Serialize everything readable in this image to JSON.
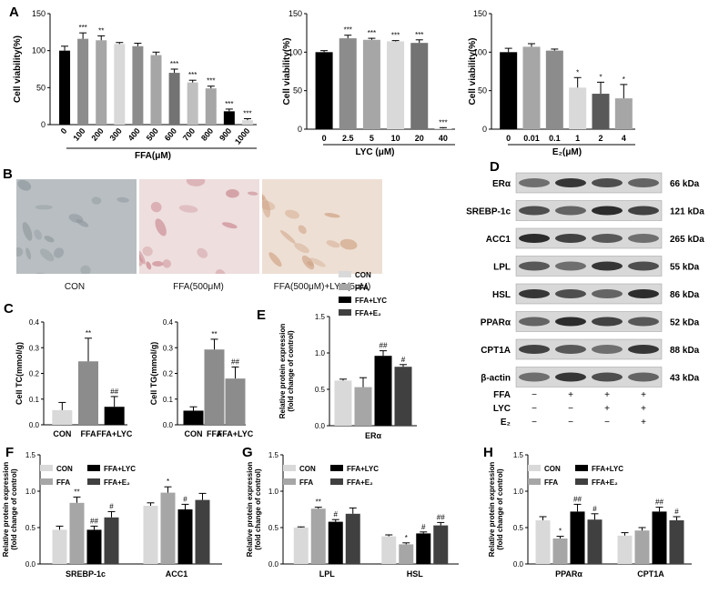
{
  "panel_labels": [
    "A",
    "B",
    "C",
    "D",
    "E",
    "F",
    "G",
    "H"
  ],
  "chart_data": [
    {
      "id": "A1",
      "type": "bar",
      "xlabel": "FFA(μM)",
      "ylabel": "Cell viability(%)",
      "ylim": [
        0,
        150
      ],
      "yticks": [
        0,
        50,
        100,
        150
      ],
      "categories": [
        "0",
        "100",
        "200",
        "300",
        "400",
        "500",
        "600",
        "700",
        "800",
        "900",
        "1000"
      ],
      "values": [
        100,
        116,
        114,
        109,
        106,
        94,
        70,
        57,
        49,
        18,
        6
      ],
      "errors": [
        6,
        8,
        6,
        2,
        4,
        4,
        5,
        3,
        3,
        3,
        2
      ],
      "sig": [
        "",
        "***",
        "**",
        "",
        "",
        "",
        "***",
        "***",
        "***",
        "***",
        "***"
      ],
      "colors": [
        "#000000",
        "#8c8c8c",
        "#a6a6a6",
        "#d9d9d9",
        "#8c8c8c",
        "#a6a6a6",
        "#737373",
        "#bfbfbf",
        "#a6a6a6",
        "#000000",
        "#d9d9d9"
      ],
      "rotate": true
    },
    {
      "id": "A2",
      "type": "bar",
      "xlabel": "LYC (μM)",
      "ylabel": "Cell viability(%)",
      "ylim": [
        0,
        150
      ],
      "yticks": [
        0,
        50,
        100,
        150
      ],
      "categories": [
        "0",
        "2.5",
        "5",
        "10",
        "20",
        "40"
      ],
      "values": [
        100,
        118,
        116,
        114,
        112,
        1
      ],
      "errors": [
        2,
        4,
        2,
        1,
        4,
        1
      ],
      "sig": [
        "",
        "***",
        "***",
        "***",
        "***",
        "***"
      ],
      "colors": [
        "#000000",
        "#8c8c8c",
        "#a6a6a6",
        "#d9d9d9",
        "#737373",
        "#d9d9d9"
      ],
      "rotate": false
    },
    {
      "id": "A3",
      "type": "bar",
      "xlabel": "E₂(μM)",
      "ylabel": "Cell viability(%)",
      "ylim": [
        0,
        150
      ],
      "yticks": [
        0,
        50,
        100,
        150
      ],
      "categories": [
        "0",
        "0.01",
        "0.1",
        "1",
        "2",
        "4"
      ],
      "values": [
        100,
        107,
        102,
        54,
        46,
        40
      ],
      "errors": [
        5,
        4,
        2,
        13,
        15,
        18
      ],
      "sig": [
        "",
        "",
        "",
        "*",
        "*",
        "*"
      ],
      "colors": [
        "#000000",
        "#a6a6a6",
        "#8c8c8c",
        "#d9d9d9",
        "#595959",
        "#a6a6a6"
      ],
      "rotate": false
    },
    {
      "id": "C1",
      "type": "bar",
      "xlabel": "",
      "ylabel": "Cell TC(mmol/g)",
      "ylim": [
        0,
        0.4
      ],
      "yticks": [
        0.0,
        0.1,
        0.2,
        0.3,
        0.4
      ],
      "categories": [
        "CON",
        "FFA",
        "FFA+LYC"
      ],
      "values": [
        0.057,
        0.247,
        0.07
      ],
      "errors": [
        0.03,
        0.09,
        0.04
      ],
      "sig": [
        "",
        "**",
        "##"
      ],
      "colors": [
        "#d9d9d9",
        "#8c8c8c",
        "#000000"
      ],
      "rotate": false
    },
    {
      "id": "C2",
      "type": "bar",
      "xlabel": "",
      "ylabel": "Cell TG(mmol/g)",
      "ylim": [
        0,
        0.4
      ],
      "yticks": [
        0.0,
        0.1,
        0.2,
        0.3,
        0.4
      ],
      "categories": [
        "CON",
        "FFA",
        "FFA+LYC"
      ],
      "values": [
        0.055,
        0.293,
        0.18
      ],
      "errors": [
        0.015,
        0.04,
        0.045
      ],
      "sig": [
        "",
        "**",
        "##"
      ],
      "colors": [
        "#000000",
        "#8c8c8c",
        "#8c8c8c"
      ],
      "rotate": false
    },
    {
      "id": "E",
      "type": "bar",
      "xlabel": "",
      "ylabel": "Relative protein expression (fold change of control)",
      "ylim": [
        0,
        1.5
      ],
      "yticks": [
        0.0,
        0.5,
        1.0,
        1.5
      ],
      "categories": [
        "ERα"
      ],
      "legend": [
        "CON",
        "FFA",
        "FFA+LYC",
        "FFA+E₂"
      ],
      "series_colors": [
        "#d9d9d9",
        "#a6a6a6",
        "#000000",
        "#404040"
      ],
      "series": [
        {
          "name": "CON",
          "values": [
            0.62
          ],
          "errors": [
            0.02
          ],
          "sig": [
            ""
          ]
        },
        {
          "name": "FFA",
          "values": [
            0.53
          ],
          "errors": [
            0.13
          ],
          "sig": [
            ""
          ]
        },
        {
          "name": "FFA+LYC",
          "values": [
            0.96
          ],
          "errors": [
            0.07
          ],
          "sig": [
            "##"
          ]
        },
        {
          "name": "FFA+E₂",
          "values": [
            0.81
          ],
          "errors": [
            0.03
          ],
          "sig": [
            "#"
          ]
        }
      ]
    },
    {
      "id": "F",
      "type": "bar",
      "xlabel": "",
      "ylabel": "Relative protein expression (fold change of control)",
      "ylim": [
        0,
        1.5
      ],
      "yticks": [
        0.0,
        0.5,
        1.0,
        1.5
      ],
      "categories": [
        "SREBP-1c",
        "ACC1"
      ],
      "legend": [
        "CON",
        "FFA",
        "FFA+LYC",
        "FFA+E₂"
      ],
      "series_colors": [
        "#d9d9d9",
        "#a6a6a6",
        "#000000",
        "#404040"
      ],
      "series": [
        {
          "name": "CON",
          "values": [
            0.47,
            0.8
          ],
          "errors": [
            0.05,
            0.04
          ],
          "sig": [
            "",
            ""
          ]
        },
        {
          "name": "FFA",
          "values": [
            0.84,
            0.98
          ],
          "errors": [
            0.08,
            0.08
          ],
          "sig": [
            "**",
            "*"
          ]
        },
        {
          "name": "FFA+LYC",
          "values": [
            0.47,
            0.75
          ],
          "errors": [
            0.05,
            0.07
          ],
          "sig": [
            "##",
            "#"
          ]
        },
        {
          "name": "FFA+E₂",
          "values": [
            0.64,
            0.88
          ],
          "errors": [
            0.08,
            0.09
          ],
          "sig": [
            "#",
            ""
          ]
        }
      ]
    },
    {
      "id": "G",
      "type": "bar",
      "xlabel": "",
      "ylabel": "Relative protein expression (fold change of control)",
      "ylim": [
        0,
        1.5
      ],
      "yticks": [
        0.0,
        0.5,
        1.0,
        1.5
      ],
      "categories": [
        "LPL",
        "HSL"
      ],
      "legend": [
        "CON",
        "FFA",
        "FFA+LYC",
        "FFA+E₂"
      ],
      "series_colors": [
        "#d9d9d9",
        "#a6a6a6",
        "#000000",
        "#404040"
      ],
      "series": [
        {
          "name": "CON",
          "values": [
            0.5,
            0.38
          ],
          "errors": [
            0.01,
            0.02
          ],
          "sig": [
            "",
            ""
          ]
        },
        {
          "name": "FFA",
          "values": [
            0.76,
            0.27
          ],
          "errors": [
            0.02,
            0.02
          ],
          "sig": [
            "**",
            "*"
          ]
        },
        {
          "name": "FFA+LYC",
          "values": [
            0.58,
            0.42
          ],
          "errors": [
            0.03,
            0.02
          ],
          "sig": [
            "#",
            "#"
          ]
        },
        {
          "name": "FFA+E₂",
          "values": [
            0.69,
            0.53
          ],
          "errors": [
            0.08,
            0.04
          ],
          "sig": [
            "",
            "##"
          ]
        }
      ]
    },
    {
      "id": "H",
      "type": "bar",
      "xlabel": "",
      "ylabel": "Relative protein expression (fold change of control)",
      "ylim": [
        0,
        1.5
      ],
      "yticks": [
        0.0,
        0.5,
        1.0,
        1.5
      ],
      "categories": [
        "PPARα",
        "CPT1A"
      ],
      "legend": [
        "CON",
        "FFA",
        "FFA+LYC",
        "FFA+E₂"
      ],
      "series_colors": [
        "#d9d9d9",
        "#a6a6a6",
        "#000000",
        "#404040"
      ],
      "series": [
        {
          "name": "CON",
          "values": [
            0.6,
            0.39
          ],
          "errors": [
            0.05,
            0.04
          ],
          "sig": [
            "",
            ""
          ]
        },
        {
          "name": "FFA",
          "values": [
            0.35,
            0.46
          ],
          "errors": [
            0.03,
            0.04
          ],
          "sig": [
            "*",
            ""
          ]
        },
        {
          "name": "FFA+LYC",
          "values": [
            0.72,
            0.72
          ],
          "errors": [
            0.1,
            0.06
          ],
          "sig": [
            "##",
            "##"
          ]
        },
        {
          "name": "FFA+E₂",
          "values": [
            0.61,
            0.6
          ],
          "errors": [
            0.08,
            0.05
          ],
          "sig": [
            "#",
            "#"
          ]
        }
      ]
    }
  ],
  "micrographs": [
    {
      "caption": "CON",
      "bg": "#b8bec2",
      "cell": "#8e979c"
    },
    {
      "caption": "FFA(500μM)",
      "bg": "#eedede",
      "cell": "#c98990"
    },
    {
      "caption": "FFA(500μM)+LYC(5μM)",
      "bg": "#eedfd4",
      "cell": "#cfa386"
    }
  ],
  "western_blot": {
    "proteins": [
      {
        "name": "ERα",
        "kda": "66 kDa"
      },
      {
        "name": "SREBP-1c",
        "kda": "121 kDa"
      },
      {
        "name": "ACC1",
        "kda": "265 kDa"
      },
      {
        "name": "LPL",
        "kda": "55 kDa"
      },
      {
        "name": "HSL",
        "kda": "86 kDa"
      },
      {
        "name": "PPARα",
        "kda": "52 kDa"
      },
      {
        "name": "CPT1A",
        "kda": "88 kDa"
      },
      {
        "name": "β-actin",
        "kda": "43 kDa"
      }
    ],
    "conditions": [
      {
        "label": "FFA",
        "marks": [
          "−",
          "+",
          "+",
          "+"
        ]
      },
      {
        "label": "LYC",
        "marks": [
          "−",
          "−",
          "+",
          "+"
        ]
      },
      {
        "label": "E₂",
        "marks": [
          "−",
          "−",
          "−",
          "+"
        ]
      }
    ]
  }
}
